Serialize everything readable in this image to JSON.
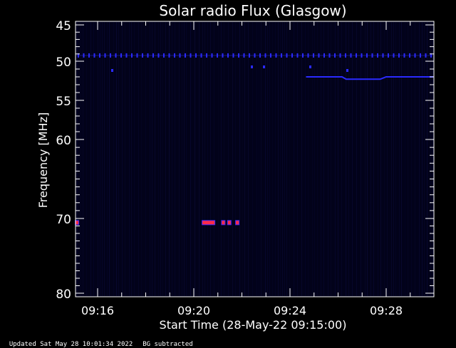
{
  "chart_data": {
    "type": "heatmap",
    "title": "Solar radio Flux (Glasgow)",
    "ylabel": "Frequency [MHz]",
    "xlabel": "Start Time (28-May-22 09:15:00)",
    "y_ticks": [
      "45",
      "50",
      "55",
      "60",
      "70",
      "80"
    ],
    "x_ticks": [
      "09:16",
      "09:20",
      "09:24",
      "09:28"
    ],
    "y_axis": {
      "label_values": [
        45,
        50,
        55,
        60,
        70,
        80
      ],
      "ylim": [
        80,
        45
      ]
    },
    "x_axis": {
      "start": "09:15:00",
      "tick_times": [
        "09:16",
        "09:20",
        "09:24",
        "09:28"
      ]
    },
    "colors": {
      "background": "#000000",
      "plot_background": "#02021a",
      "axis": "#ffffff",
      "blue_signal": "#2a2aff",
      "red_signal": "#ff2a4a"
    },
    "features": {
      "periodic_band_mhz": 49.5,
      "red_bursts": [
        {
          "time": "09:15:05",
          "freq_mhz": 70.5
        },
        {
          "time": "09:20:25",
          "freq_mhz": 70.5
        },
        {
          "time": "09:21:10",
          "freq_mhz": 70.5
        },
        {
          "time": "09:21:25",
          "freq_mhz": 70.5
        },
        {
          "time": "09:21:45",
          "freq_mhz": 70.5
        }
      ],
      "drift_line": [
        {
          "time": "09:24:40",
          "freq_mhz": 52.0
        },
        {
          "time": "09:26:10",
          "freq_mhz": 52.0
        },
        {
          "time": "09:26:20",
          "freq_mhz": 52.3
        },
        {
          "time": "09:27:45",
          "freq_mhz": 52.3
        },
        {
          "time": "09:28:00",
          "freq_mhz": 52.0
        },
        {
          "time": "09:30:00",
          "freq_mhz": 52.0
        }
      ]
    }
  },
  "footer": {
    "updated": "Updated Sat May 28 10:01:34 2022",
    "mode": "BG subtracted"
  }
}
